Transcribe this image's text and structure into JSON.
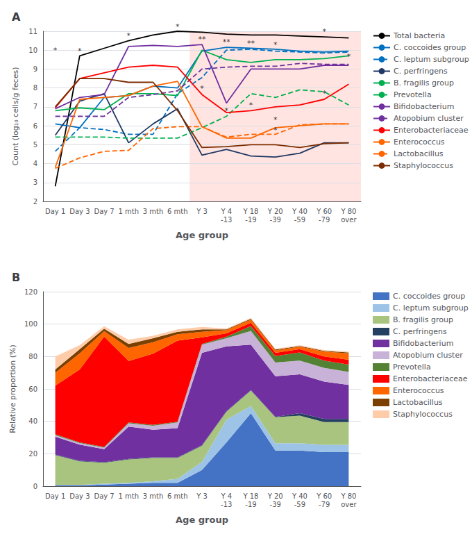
{
  "chart_data": [
    {
      "type": "line",
      "title": "A",
      "x_label": "Age group",
      "y_label": "Count (log₁₀ cells/g feces)",
      "categories": [
        "Day 1",
        "Day 3",
        "Day 7",
        "1 mth",
        "3 mth",
        "6 mth",
        "Y 3",
        "Y 4\n-13",
        "Y 18\n-19",
        "Y 20\n-39",
        "Y 40\n-59",
        "Y 60\n-79",
        "Y 80\nover"
      ],
      "ylim": [
        2,
        11
      ],
      "yticks": [
        2,
        3,
        4,
        5,
        6,
        7,
        8,
        9,
        10,
        11
      ],
      "legend": "right",
      "shaded_span": {
        "from": "Y 3",
        "to": "Y 80\nover",
        "color": "#FFE4E1"
      },
      "series": [
        {
          "name": "Total bacteria",
          "color": "#000000",
          "line_style": "solid",
          "values": [
            2.8,
            9.7,
            10.1,
            10.5,
            10.8,
            11.0,
            10.95,
            10.85,
            10.8,
            10.8,
            10.75,
            10.7,
            10.65
          ]
        },
        {
          "name": "C. coccoides group",
          "color": "#0070C0",
          "line_style": "solid",
          "values": [
            6.1,
            5.9,
            7.5,
            7.6,
            8.1,
            8.0,
            9.95,
            10.15,
            10.1,
            10.05,
            9.95,
            9.9,
            9.95
          ]
        },
        {
          "name": "C. leptum subgroup",
          "color": "#0070C0",
          "line_style": "dashed",
          "values": [
            4.65,
            5.9,
            5.8,
            5.55,
            5.55,
            7.7,
            8.55,
            10.0,
            10.05,
            9.95,
            9.9,
            9.85,
            9.9
          ]
        },
        {
          "name": "C. perfringens",
          "color": "#1F3864",
          "line_style": "solid",
          "values": [
            5.5,
            7.3,
            7.7,
            5.1,
            6.1,
            6.9,
            4.45,
            4.75,
            4.4,
            4.35,
            4.55,
            5.1,
            5.1
          ]
        },
        {
          "name": "B. fragilis group",
          "color": "#00B050",
          "line_style": "solid",
          "values": [
            6.8,
            6.95,
            6.85,
            7.7,
            7.7,
            7.6,
            10.0,
            9.5,
            9.35,
            9.5,
            9.5,
            9.55,
            9.7
          ]
        },
        {
          "name": "Prevotella",
          "color": "#00B050",
          "line_style": "dashed",
          "values": [
            5.4,
            5.4,
            5.4,
            5.35,
            5.35,
            5.35,
            5.9,
            6.5,
            7.7,
            7.5,
            7.9,
            7.8,
            7.1
          ]
        },
        {
          "name": "Bifidobacterium",
          "color": "#7030A0",
          "line_style": "solid",
          "values": [
            6.9,
            7.5,
            7.65,
            10.2,
            10.25,
            10.2,
            10.3,
            7.2,
            9.0,
            9.0,
            9.0,
            9.2,
            9.2
          ]
        },
        {
          "name": "Atopobium cluster",
          "color": "#7030A0",
          "line_style": "dashed",
          "values": [
            6.5,
            6.5,
            6.5,
            7.5,
            7.65,
            7.85,
            9.0,
            9.1,
            9.15,
            9.15,
            9.3,
            9.25,
            9.25
          ]
        },
        {
          "name": "Enterobacteriaceae",
          "color": "#FF0000",
          "line_style": "solid",
          "values": [
            6.95,
            8.5,
            8.8,
            9.1,
            9.2,
            9.1,
            7.65,
            6.7,
            6.8,
            7.0,
            7.1,
            7.4,
            8.2
          ]
        },
        {
          "name": "Enterococcus",
          "color": "#FF6600",
          "line_style": "solid",
          "values": [
            3.8,
            7.4,
            7.5,
            7.6,
            8.1,
            8.35,
            5.95,
            5.35,
            5.35,
            5.9,
            6.0,
            6.1,
            6.1
          ]
        },
        {
          "name": "Lactobacillus",
          "color": "#FF6600",
          "line_style": "dashed",
          "values": [
            3.75,
            4.3,
            4.65,
            4.7,
            5.85,
            5.95,
            5.95,
            5.4,
            5.55,
            5.55,
            6.05,
            6.1,
            6.1
          ]
        },
        {
          "name": "Staphylococcus",
          "color": "#7B2C00",
          "line_style": "solid",
          "values": [
            7.0,
            8.5,
            8.5,
            8.3,
            8.3,
            6.8,
            4.85,
            4.9,
            5.0,
            5.0,
            4.85,
            5.05,
            5.1
          ]
        }
      ],
      "annotations": [
        {
          "x": "Day 1",
          "y": 9.8,
          "text": "*"
        },
        {
          "x": "Day 3",
          "y": 9.75,
          "text": "*"
        },
        {
          "x": "1 mth",
          "y": 10.55,
          "text": "*"
        },
        {
          "x": "6 mth",
          "y": 11.02,
          "text": "*"
        },
        {
          "x": "Y 3",
          "y": 10.38,
          "text": "**"
        },
        {
          "x": "Y 4\n-13",
          "y": 10.22,
          "text": "**"
        },
        {
          "x": "Y 18\n-19",
          "y": 10.15,
          "text": "**"
        },
        {
          "x": "Y 20\n-39",
          "y": 10.1,
          "text": "*"
        },
        {
          "x": "Y 60\n-79",
          "y": 10.78,
          "text": "*"
        },
        {
          "x": "Y 3",
          "y": 7.75,
          "text": "*"
        },
        {
          "x": "Y 4\n-13",
          "y": 6.6,
          "text": "*"
        },
        {
          "x": "Y 18\n-19",
          "y": 6.9,
          "text": "*"
        },
        {
          "x": "Y 20\n-39",
          "y": 5.55,
          "text": "*"
        },
        {
          "x": "Y 20\n-39",
          "y": 6.1,
          "text": "*"
        },
        {
          "x": "Y 60\n-79",
          "y": 7.5,
          "text": "*"
        },
        {
          "x": "Y 80\nover",
          "y": 9.45,
          "text": "*"
        }
      ]
    },
    {
      "type": "area",
      "title": "B",
      "stacked": true,
      "x_label": "Age group",
      "y_label": "Relative proportion (%)",
      "categories": [
        "Day 1",
        "Day 3",
        "Day 7",
        "1 mth",
        "3 mth",
        "6 mth",
        "Y 3",
        "Y 4\n-13",
        "Y 18\n-19",
        "Y 20\n-39",
        "Y 40\n-59",
        "Y 60\n-79",
        "Y 80\nover"
      ],
      "ylim": [
        0,
        120
      ],
      "yticks": [
        0,
        20,
        40,
        60,
        80,
        100,
        120
      ],
      "legend": "right",
      "series": [
        {
          "name": "C. coccoides group",
          "color": "#4472C4",
          "values": [
            0.5,
            0.5,
            1.0,
            1.5,
            2.0,
            2.0,
            10.0,
            27.0,
            45.0,
            22.0,
            22.0,
            21.0,
            21.0
          ]
        },
        {
          "name": "C. leptum subgroup",
          "color": "#9DC3E6",
          "values": [
            0.2,
            0.3,
            0.5,
            0.5,
            1.0,
            2.5,
            5.0,
            14.0,
            4.5,
            4.5,
            4.5,
            4.5,
            4.5
          ]
        },
        {
          "name": "B. fragilis group",
          "color": "#A9C47F",
          "values": [
            18.5,
            14.5,
            13.0,
            14.5,
            14.5,
            13.0,
            10.0,
            5.0,
            9.5,
            16.0,
            17.0,
            14.0,
            14.0
          ]
        },
        {
          "name": "C. perfringens",
          "color": "#243F60",
          "values": [
            0.3,
            0.3,
            0.3,
            0.3,
            0.3,
            0.3,
            0.3,
            0.3,
            0.3,
            0.3,
            1.5,
            2.0,
            2.0
          ]
        },
        {
          "name": "Bifidobacterium",
          "color": "#7030A0",
          "values": [
            11.0,
            10.0,
            8.0,
            20.0,
            17.0,
            18.0,
            57.0,
            40.0,
            28.0,
            25.0,
            24.0,
            23.0,
            21.0
          ]
        },
        {
          "name": "Atopobium cluster",
          "color": "#C9B2D8",
          "values": [
            1.0,
            1.0,
            1.0,
            2.0,
            2.5,
            3.5,
            5.0,
            5.0,
            8.5,
            8.5,
            8.5,
            8.5,
            8.0
          ]
        },
        {
          "name": "Prevotella",
          "color": "#548235",
          "values": [
            0.5,
            0.4,
            0.4,
            0.5,
            0.5,
            0.5,
            0.5,
            1.0,
            3.0,
            4.0,
            5.0,
            4.5,
            4.5
          ]
        },
        {
          "name": "Enterobacteriaceae",
          "color": "#FF0000",
          "values": [
            30.0,
            45.0,
            68.0,
            38.0,
            44.0,
            50.0,
            4.0,
            2.0,
            2.0,
            2.0,
            2.0,
            2.5,
            3.0
          ]
        },
        {
          "name": "Enterococcus",
          "color": "#FF6600",
          "values": [
            8.0,
            10.0,
            3.5,
            8.0,
            7.0,
            4.0,
            3.5,
            2.0,
            2.0,
            1.5,
            1.5,
            3.0,
            4.0
          ]
        },
        {
          "name": "Lactobacillus",
          "color": "#7B3F00",
          "values": [
            2.0,
            2.5,
            1.5,
            2.5,
            2.5,
            1.5,
            1.5,
            0.5,
            0.5,
            0.5,
            0.5,
            0.5,
            0.5
          ]
        },
        {
          "name": "Staphylococcus",
          "color": "#FFCCAA",
          "values": [
            8.0,
            2.5,
            1.5,
            2.5,
            1.5,
            1.5,
            1.5,
            0.5,
            0.5,
            0.5,
            0.5,
            0.5,
            0.5
          ]
        }
      ]
    }
  ]
}
